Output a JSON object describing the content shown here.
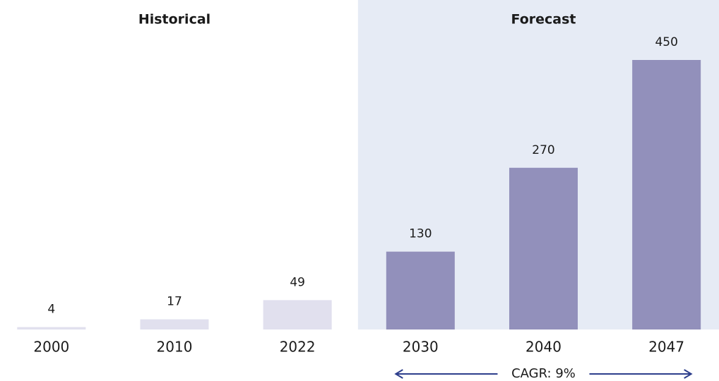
{
  "chart_data": {
    "type": "bar",
    "categories": [
      "2000",
      "2010",
      "2022",
      "2030",
      "2040",
      "2047"
    ],
    "series": [
      {
        "name": "Historical",
        "color": "#e1e0ee",
        "values": [
          4,
          17,
          49,
          null,
          null,
          null
        ]
      },
      {
        "name": "Forecast",
        "color": "#9290bb",
        "background": "#e6ebf5",
        "values": [
          null,
          null,
          null,
          130,
          270,
          450
        ]
      }
    ],
    "ylim": [
      0,
      450
    ],
    "annotation": "CAGR: 9%",
    "annotation_color": "#2d3e8c"
  }
}
